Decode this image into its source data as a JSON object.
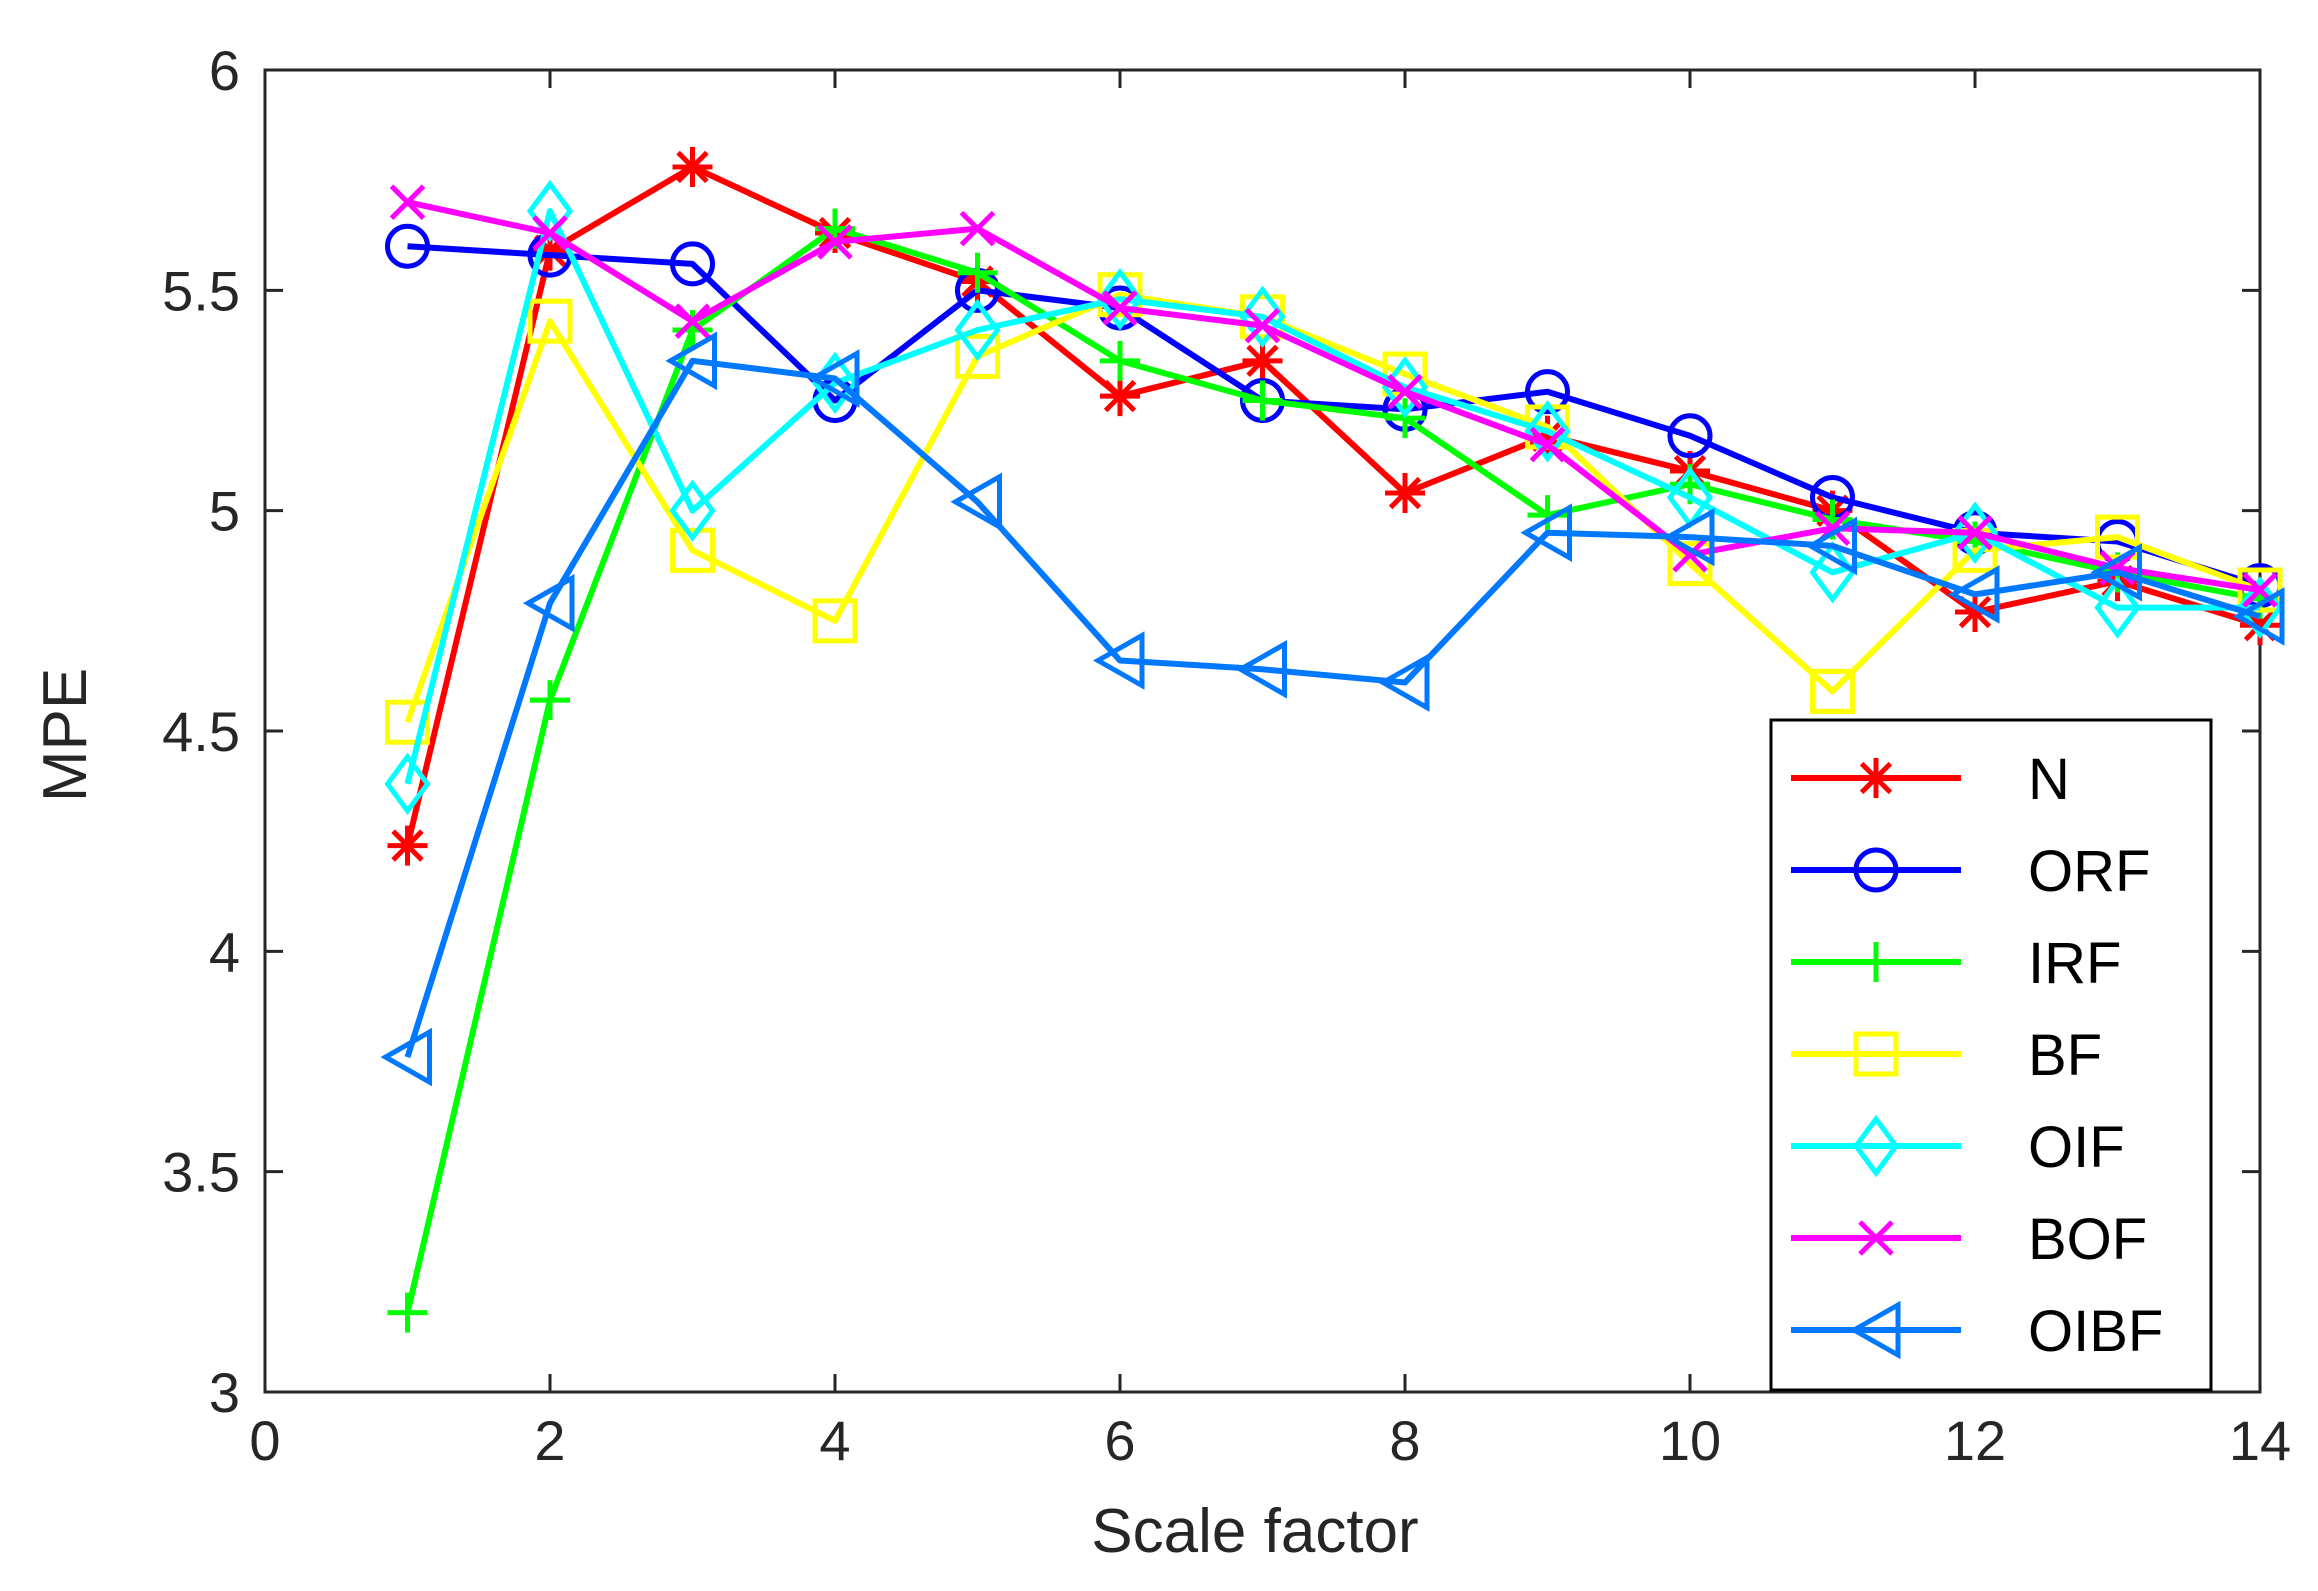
{
  "chart_data": {
    "type": "line",
    "title": "",
    "xlabel": "Scale factor",
    "ylabel": "MPE",
    "xlim": [
      0,
      14
    ],
    "ylim": [
      3,
      6
    ],
    "xticks": [
      0,
      2,
      4,
      6,
      8,
      10,
      12,
      14
    ],
    "xtick_labels": [
      "0",
      "2",
      "4",
      "6",
      "8",
      "10",
      "12",
      "14"
    ],
    "yticks": [
      3,
      3.5,
      4,
      4.5,
      5,
      5.5,
      6
    ],
    "ytick_labels": [
      "3",
      "3.5",
      "4",
      "4.5",
      "5",
      "5.5",
      "6"
    ],
    "grid": false,
    "legend_position": "bottom-right",
    "x": [
      1,
      2,
      3,
      4,
      5,
      6,
      7,
      8,
      9,
      10,
      11,
      12,
      13,
      14
    ],
    "series": [
      {
        "name": "N",
        "color": "#ff0000",
        "marker": "asterisk",
        "values": [
          4.24,
          5.59,
          5.78,
          5.63,
          5.52,
          5.26,
          5.34,
          5.04,
          5.17,
          5.09,
          5.0,
          4.77,
          4.84,
          4.74
        ]
      },
      {
        "name": "ORF",
        "color": "#0000ff",
        "marker": "circle",
        "values": [
          5.6,
          5.58,
          5.56,
          5.25,
          5.5,
          5.46,
          5.25,
          5.23,
          5.27,
          5.17,
          5.03,
          4.95,
          4.93,
          4.83
        ]
      },
      {
        "name": "IRF",
        "color": "#00ff00",
        "marker": "plus",
        "values": [
          3.18,
          4.57,
          5.41,
          5.64,
          5.54,
          5.34,
          5.25,
          5.21,
          4.99,
          5.06,
          4.98,
          4.93,
          4.86,
          4.8
        ]
      },
      {
        "name": "BF",
        "color": "#ffff00",
        "marker": "square",
        "values": [
          4.52,
          5.43,
          4.91,
          4.75,
          5.35,
          5.49,
          5.44,
          5.31,
          5.19,
          4.88,
          4.59,
          4.91,
          4.94,
          4.82
        ]
      },
      {
        "name": "OIF",
        "color": "#00ffff",
        "marker": "diamond",
        "values": [
          4.38,
          5.68,
          5.0,
          5.29,
          5.41,
          5.48,
          5.44,
          5.28,
          5.18,
          5.03,
          4.86,
          4.95,
          4.78,
          4.78
        ]
      },
      {
        "name": "BOF",
        "color": "#ff00ff",
        "marker": "x",
        "values": [
          5.7,
          5.63,
          5.43,
          5.61,
          5.64,
          5.46,
          5.42,
          5.27,
          5.15,
          4.9,
          4.96,
          4.95,
          4.87,
          4.82
        ]
      },
      {
        "name": "OIBF",
        "color": "#0078ff",
        "marker": "triangle-left",
        "values": [
          3.76,
          4.79,
          5.34,
          5.3,
          5.02,
          4.66,
          4.64,
          4.61,
          4.95,
          4.94,
          4.92,
          4.81,
          4.86,
          4.76
        ]
      }
    ]
  }
}
